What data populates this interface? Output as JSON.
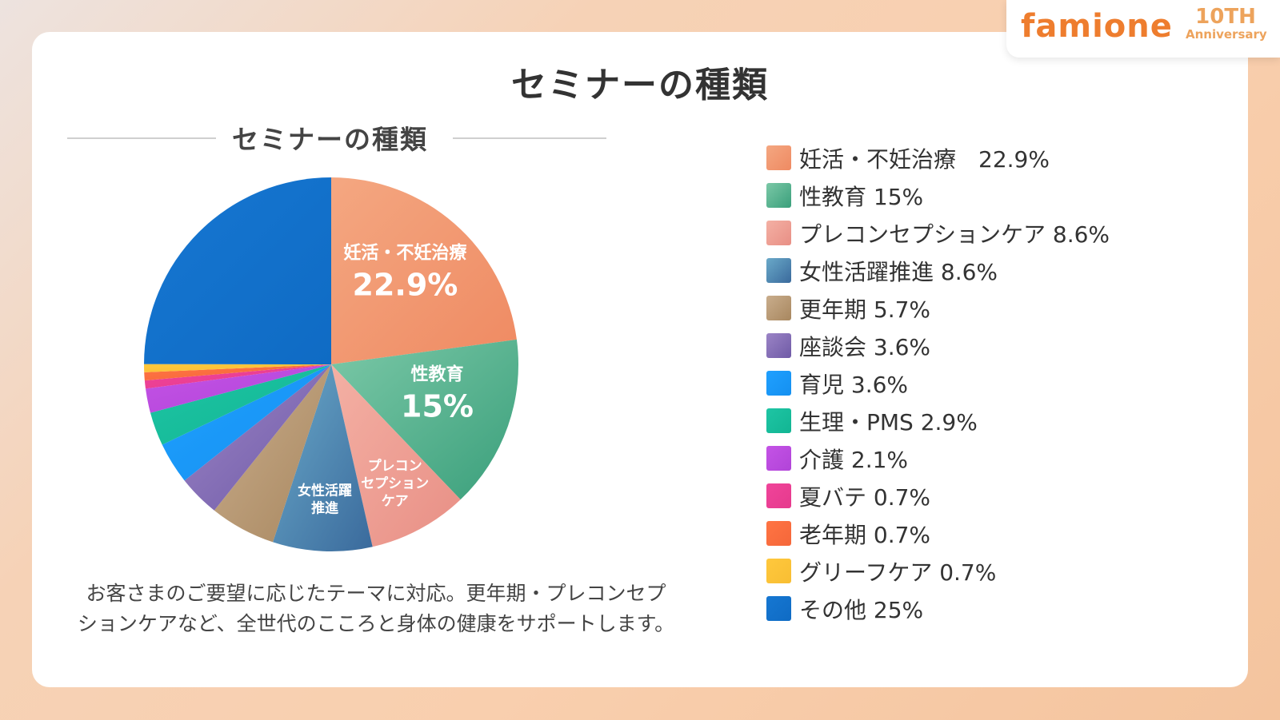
{
  "logo": {
    "word_a": "fami",
    "word_b": "one",
    "anniv_big": "10TH",
    "anniv_small": "Anniversary"
  },
  "main_title": "セミナーの種類",
  "chart_data": {
    "type": "pie",
    "title": "セミナーの種類",
    "slices": [
      {
        "name": "妊活・不妊治療",
        "value": 22.9,
        "legend": "妊活・不妊治療　22.9%",
        "colors": [
          "#f4a781",
          "#ef8a62"
        ],
        "label": [
          "妊活・不妊治療",
          "22.9%"
        ]
      },
      {
        "name": "性教育",
        "value": 15,
        "legend": "性教育 15%",
        "colors": [
          "#7bc8a7",
          "#3a9f7b"
        ],
        "label": [
          "性教育",
          "15%"
        ]
      },
      {
        "name": "プレコンセプションケア",
        "value": 8.6,
        "legend": "プレコンセプションケア 8.6%",
        "colors": [
          "#f4b0a4",
          "#e88f85"
        ],
        "label": [
          "プレコン",
          "セプション",
          "ケア"
        ]
      },
      {
        "name": "女性活躍推進",
        "value": 8.6,
        "legend": "女性活躍推進 8.6%",
        "colors": [
          "#6aa9c9",
          "#3a6a9c"
        ],
        "label": [
          "女性活躍",
          "推進"
        ]
      },
      {
        "name": "更年期",
        "value": 5.7,
        "legend": "更年期 5.7%",
        "colors": [
          "#c9ad8c",
          "#a8875f"
        ],
        "label": []
      },
      {
        "name": "座談会",
        "value": 3.6,
        "legend": "座談会 3.6%",
        "colors": [
          "#9b84c6",
          "#6f5aa6"
        ],
        "label": []
      },
      {
        "name": "育児",
        "value": 3.6,
        "legend": "育児 3.6%",
        "colors": [
          "#1fa0ff",
          "#1590f0"
        ],
        "label": []
      },
      {
        "name": "生理・PMS",
        "value": 2.9,
        "legend": "生理・PMS 2.9%",
        "colors": [
          "#1ec5a4",
          "#12b593"
        ],
        "label": []
      },
      {
        "name": "介護",
        "value": 2.1,
        "legend": "介護 2.1%",
        "colors": [
          "#c453e6",
          "#b144d8"
        ],
        "label": []
      },
      {
        "name": "夏バテ",
        "value": 0.7,
        "legend": "夏バテ 0.7%",
        "colors": [
          "#f0449a",
          "#e63a8d"
        ],
        "label": []
      },
      {
        "name": "老年期",
        "value": 0.7,
        "legend": "老年期 0.7%",
        "colors": [
          "#ff7443",
          "#f5673a"
        ],
        "label": []
      },
      {
        "name": "グリーフケア",
        "value": 0.7,
        "legend": "グリーフケア 0.7%",
        "colors": [
          "#ffc83d",
          "#f8be33"
        ],
        "label": []
      },
      {
        "name": "その他",
        "value": 25,
        "legend": "その他 25%",
        "colors": [
          "#1677d2",
          "#0f6bc4"
        ],
        "label": []
      }
    ]
  },
  "description": [
    "お客さまのご要望に応じたテーマに対応。更年期・プレコンセプ",
    "ションケアなど、全世代のこころと身体の健康をサポートします。"
  ]
}
